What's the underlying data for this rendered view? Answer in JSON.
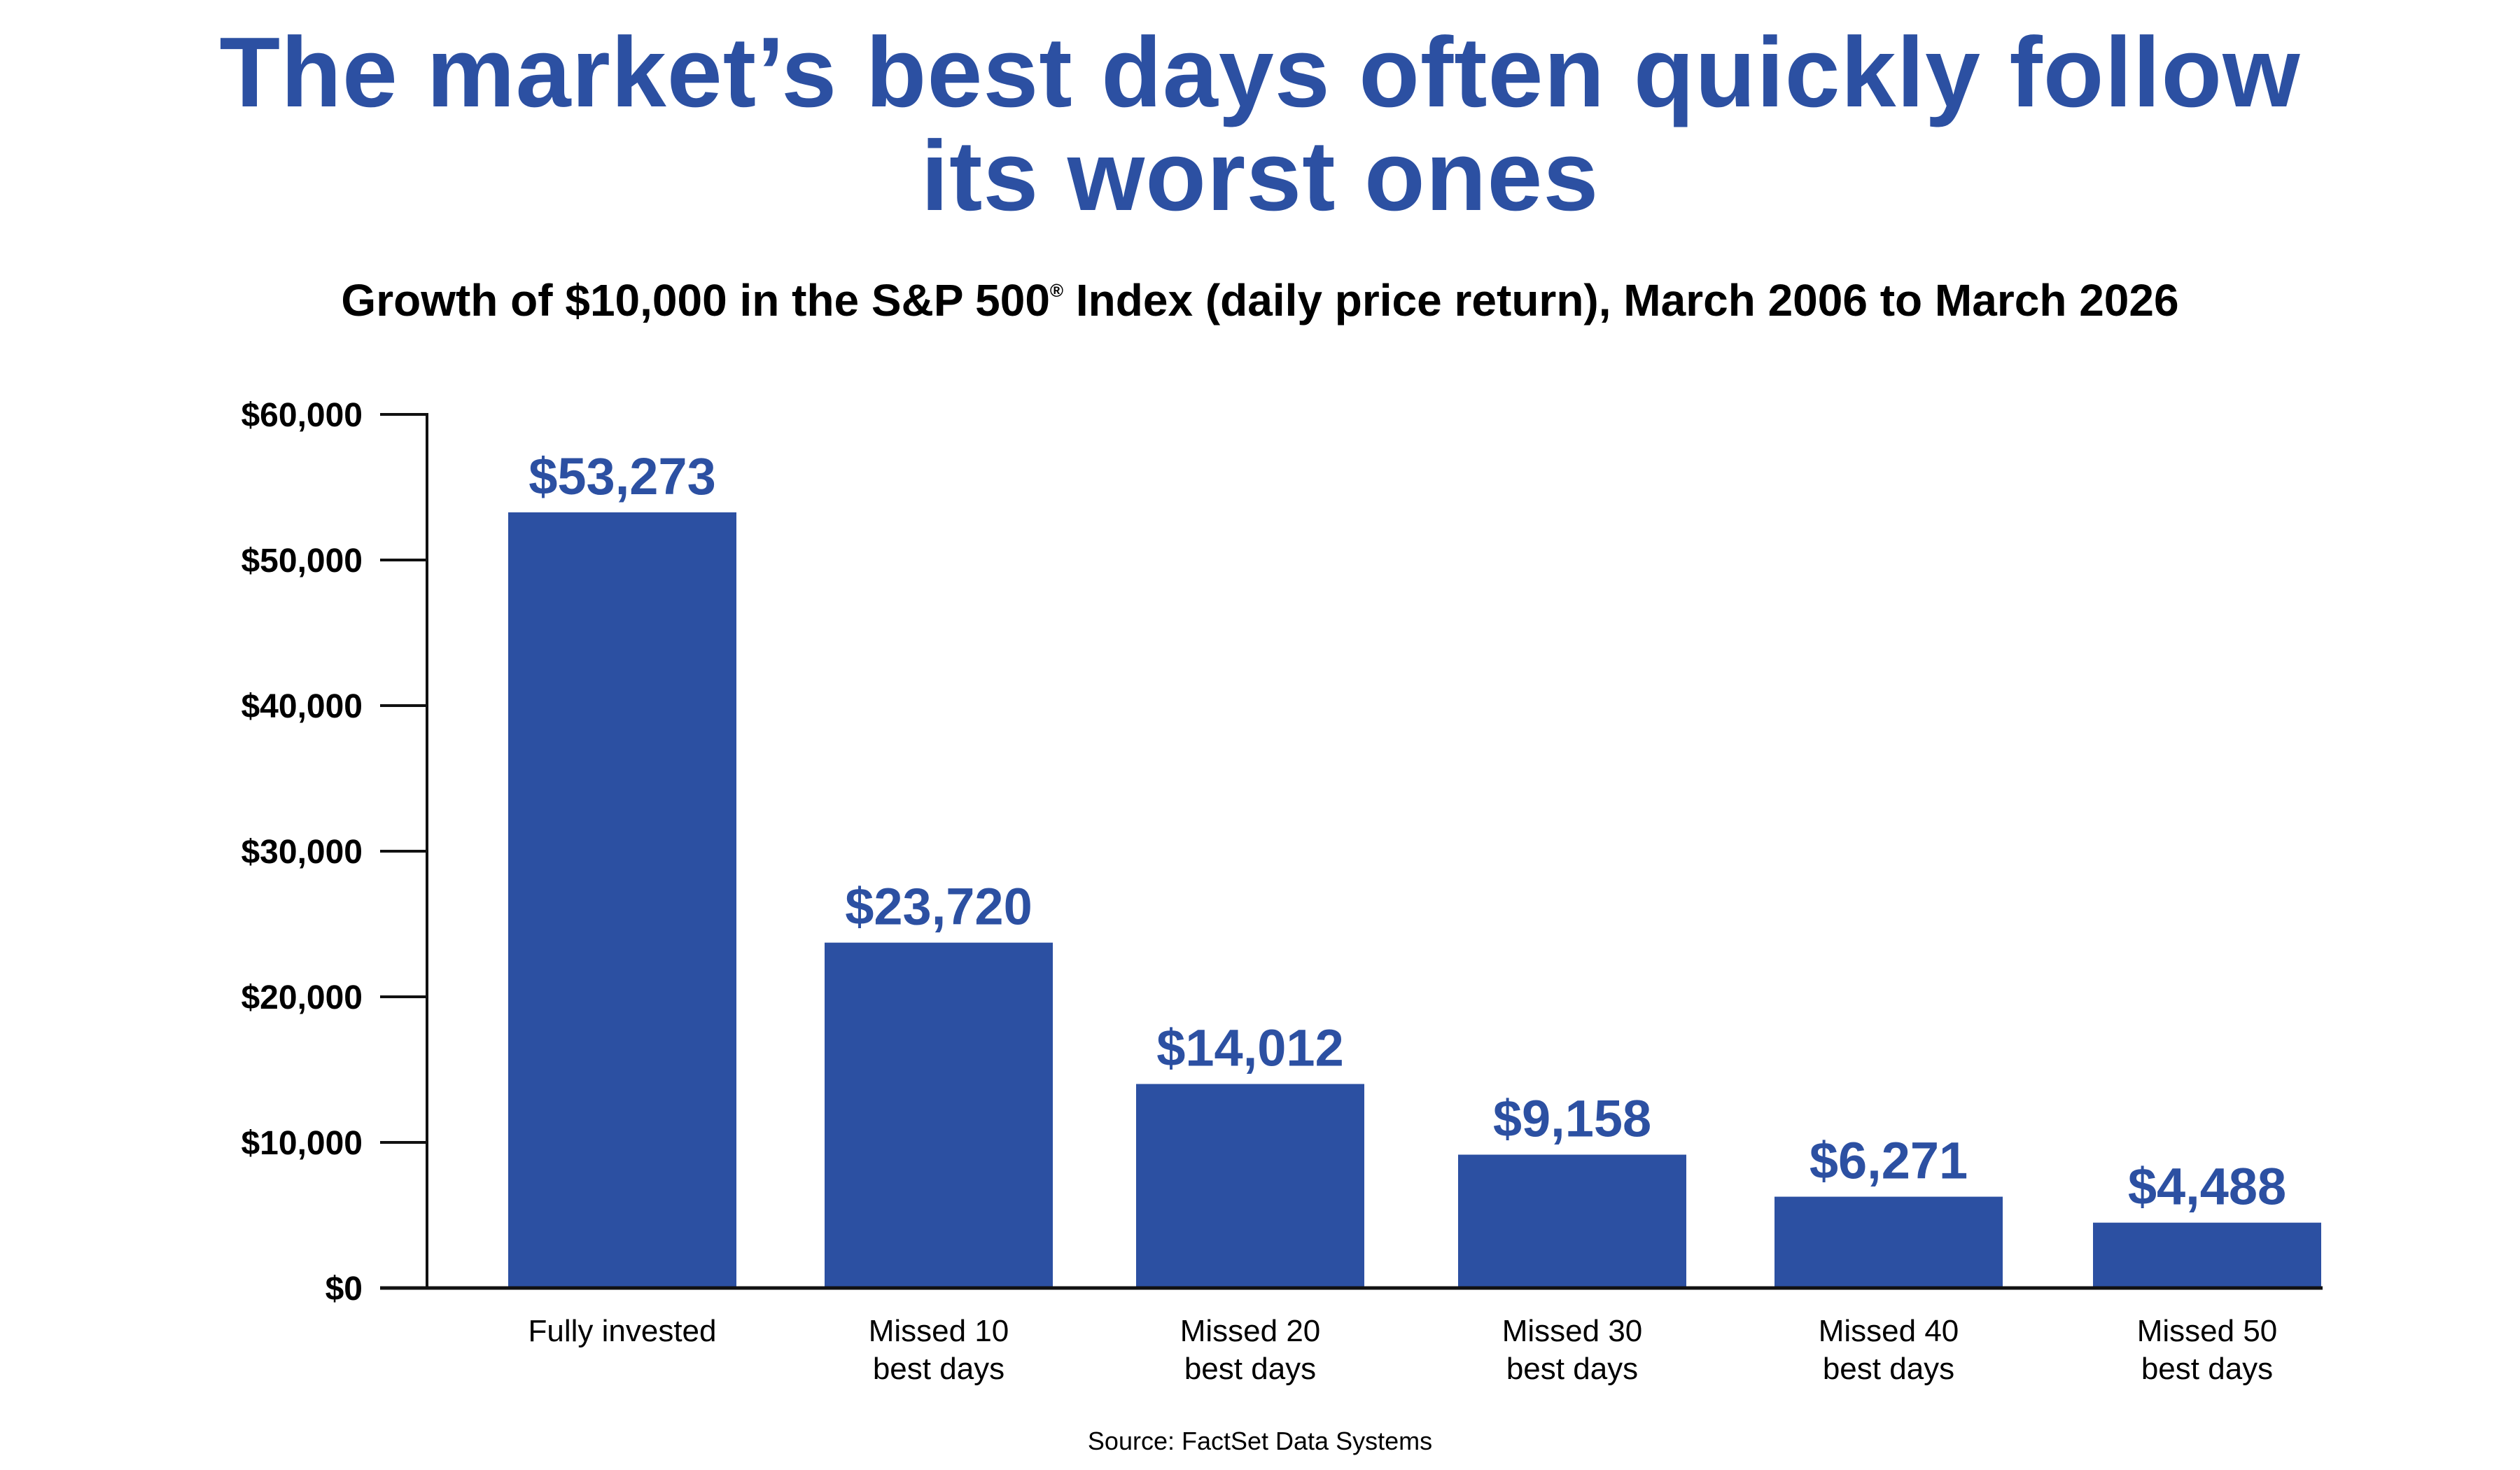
{
  "title_line1": "The market’s best days often quickly follow",
  "title_line2": "its worst ones",
  "subtitle_pre": "Growth of $10,000 in the S&P 500",
  "subtitle_mark": "®",
  "subtitle_post": " Index (daily price return), March 2006 to March 2026",
  "source": "Source: FactSet Data Systems",
  "chart_data": {
    "type": "bar",
    "categories": [
      [
        "Fully invested"
      ],
      [
        "Missed 10",
        "best days"
      ],
      [
        "Missed 20",
        "best days"
      ],
      [
        "Missed 30",
        "best days"
      ],
      [
        "Missed 40",
        "best days"
      ],
      [
        "Missed 50",
        "best days"
      ]
    ],
    "values": [
      53273,
      23720,
      14012,
      9158,
      6271,
      4488
    ],
    "value_labels": [
      "$53,273",
      "$23,720",
      "$14,012",
      "$9,158",
      "$6,271",
      "$4,488"
    ],
    "ylim": [
      0,
      60000
    ],
    "yticks": [
      0,
      10000,
      20000,
      30000,
      40000,
      50000,
      60000
    ],
    "ytick_labels": [
      "$0",
      "$10,000",
      "$20,000",
      "$30,000",
      "$40,000",
      "$50,000",
      "$60,000"
    ],
    "grid": false,
    "bar_color": "#2c50a2",
    "label_color": "#2c50a2"
  }
}
